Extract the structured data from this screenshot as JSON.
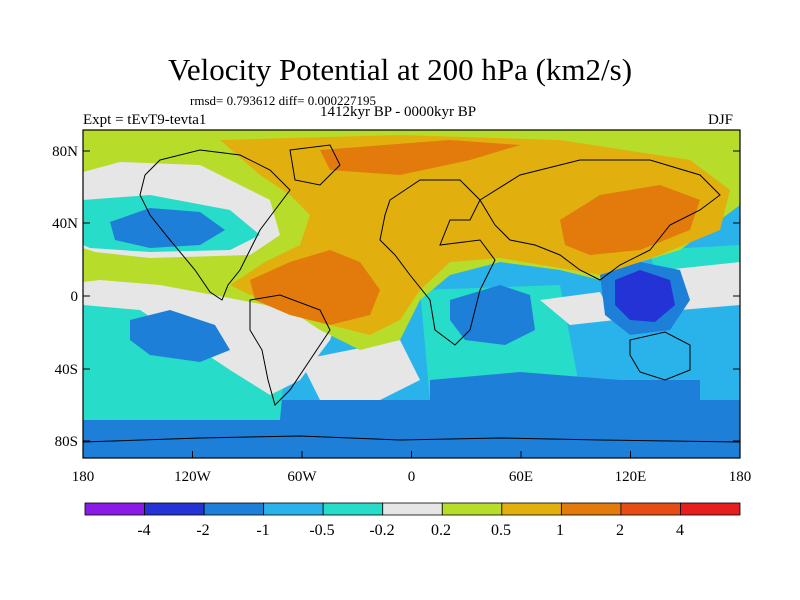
{
  "title": "Velocity Potential at 200 hPa (km2/s)",
  "stats": "rmsd= 0.793612 diff= 0.000227195",
  "experiment": "Expt = tEvT9-tevta1",
  "period": "1412kyr BP - 0000kyr BP",
  "season": "DJF",
  "lat_labels": [
    "80N",
    "40N",
    "0",
    "40S",
    "80S"
  ],
  "lon_labels": [
    "180",
    "120W",
    "60W",
    "0",
    "60E",
    "120E",
    "180"
  ],
  "colorbar": {
    "labels": [
      "-4",
      "-2",
      "-1",
      "-0.5",
      "-0.2",
      "0.2",
      "0.5",
      "1",
      "2",
      "4"
    ],
    "colors": [
      "#8a1ae6",
      "#2433d6",
      "#1e7fd9",
      "#2ab3ea",
      "#27dcc8",
      "#e6e6e6",
      "#b8dc2a",
      "#e2b00e",
      "#e37a0c",
      "#e64d14",
      "#e61e1e"
    ]
  }
}
